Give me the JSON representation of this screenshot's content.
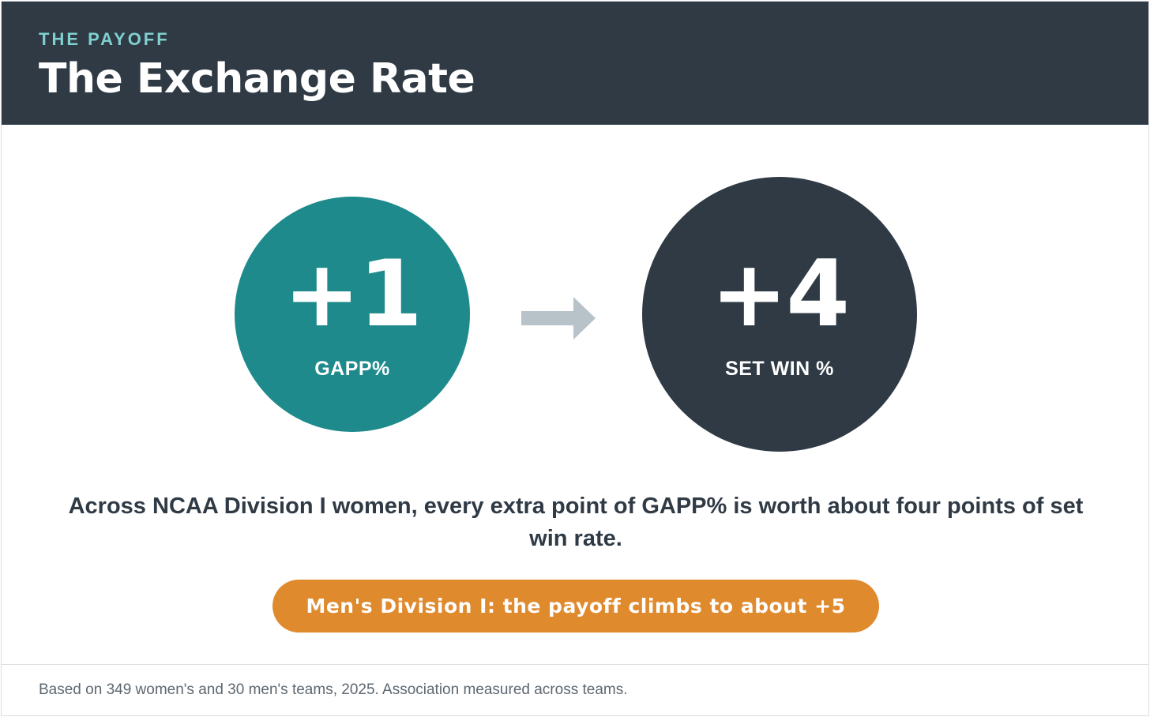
{
  "header": {
    "eyebrow": "THE PAYOFF",
    "title": "The Exchange Rate"
  },
  "left_circle": {
    "value": "+1",
    "label": "GAPP%",
    "color": "#1e8a8c"
  },
  "arrow": {
    "icon": "right-arrow-icon",
    "color": "#b8c2c9"
  },
  "right_circle": {
    "value": "+4",
    "label": "SET WIN %",
    "color": "#2f3a45"
  },
  "statement": "Across NCAA Division I women, every extra point of GAPP% is worth about four points of set win rate.",
  "callout": {
    "text": "Men's Division I: the payoff climbs to about +5",
    "color": "#e08a2e"
  },
  "footnote": "Based on 349 women's and 30 men's teams, 2025. Association measured across teams.",
  "colors": {
    "header_bg": "#2f3a45",
    "eyebrow": "#7fd0cf"
  }
}
